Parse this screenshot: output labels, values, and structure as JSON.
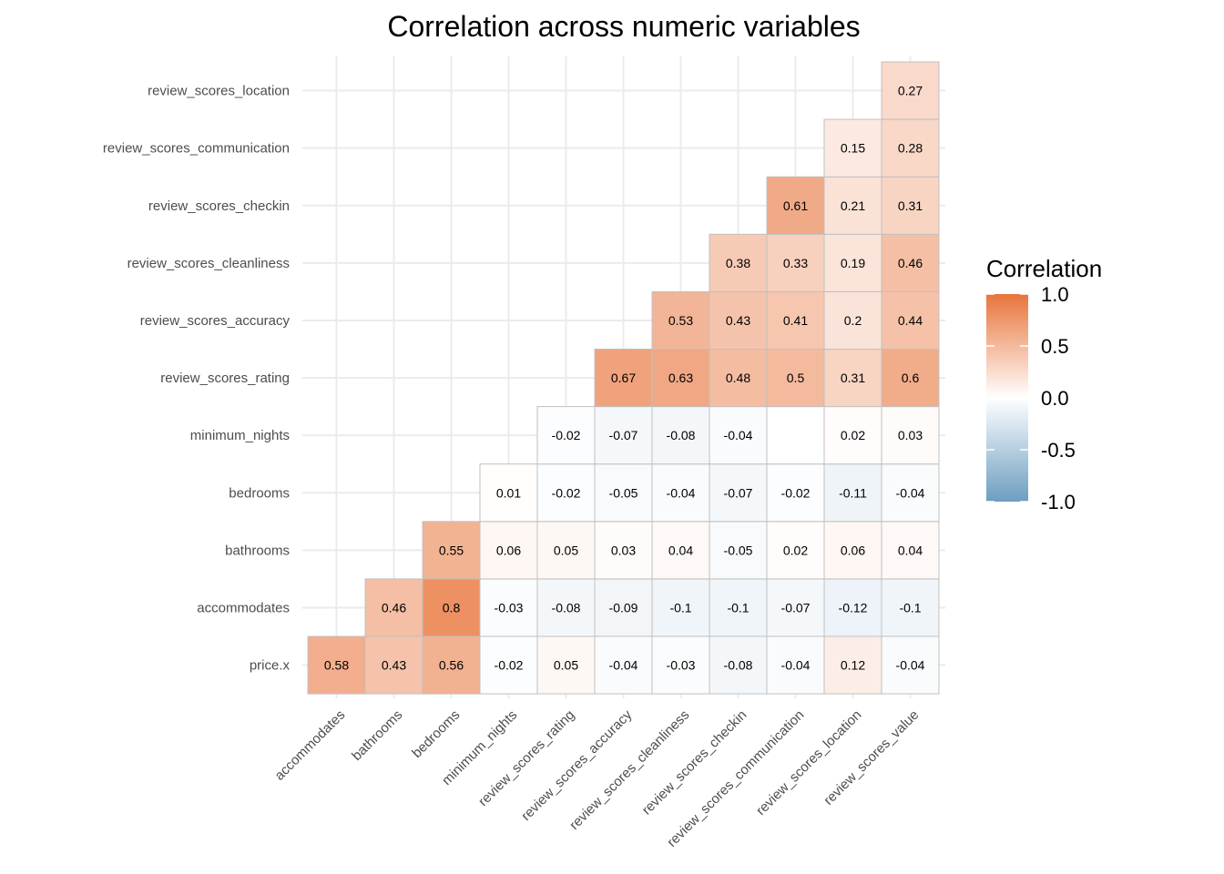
{
  "chart_data": {
    "type": "heatmap",
    "title": "Correlation across numeric variables",
    "xlabel": "",
    "ylabel": "",
    "x_categories": [
      "accommodates",
      "bathrooms",
      "bedrooms",
      "minimum_nights",
      "review_scores_rating",
      "review_scores_accuracy",
      "review_scores_cleanliness",
      "review_scores_checkin",
      "review_scores_communication",
      "review_scores_location",
      "review_scores_value"
    ],
    "y_categories": [
      "price.x",
      "accommodates",
      "bathrooms",
      "bedrooms",
      "minimum_nights",
      "review_scores_rating",
      "review_scores_accuracy",
      "review_scores_cleanliness",
      "review_scores_checkin",
      "review_scores_communication",
      "review_scores_location"
    ],
    "values": [
      [
        0.58,
        0.43,
        0.56,
        -0.02,
        0.05,
        -0.04,
        -0.03,
        -0.08,
        -0.04,
        0.12,
        -0.04
      ],
      [
        null,
        0.46,
        0.8,
        -0.03,
        -0.08,
        -0.09,
        -0.1,
        -0.1,
        -0.07,
        -0.12,
        -0.1
      ],
      [
        null,
        null,
        0.55,
        0.06,
        0.05,
        0.03,
        0.04,
        -0.05,
        0.02,
        0.06,
        0.04
      ],
      [
        null,
        null,
        null,
        0.01,
        -0.02,
        -0.05,
        -0.04,
        -0.07,
        -0.02,
        -0.11,
        -0.04
      ],
      [
        null,
        null,
        null,
        null,
        -0.02,
        -0.07,
        -0.08,
        -0.04,
        0.0,
        0.02,
        0.03
      ],
      [
        null,
        null,
        null,
        null,
        null,
        0.67,
        0.63,
        0.48,
        0.5,
        0.31,
        0.6
      ],
      [
        null,
        null,
        null,
        null,
        null,
        null,
        0.53,
        0.43,
        0.41,
        0.2,
        0.44
      ],
      [
        null,
        null,
        null,
        null,
        null,
        null,
        null,
        0.38,
        0.33,
        0.19,
        0.46
      ],
      [
        null,
        null,
        null,
        null,
        null,
        null,
        null,
        null,
        0.61,
        0.21,
        0.31
      ],
      [
        null,
        null,
        null,
        null,
        null,
        null,
        null,
        null,
        null,
        0.15,
        0.28
      ],
      [
        null,
        null,
        null,
        null,
        null,
        null,
        null,
        null,
        null,
        null,
        0.27
      ]
    ],
    "cell_labels": [
      [
        "0.58",
        "0.43",
        "0.56",
        "-0.02",
        "0.05",
        "-0.04",
        "-0.03",
        "-0.08",
        "-0.04",
        "0.12",
        "-0.04"
      ],
      [
        null,
        "0.46",
        "0.8",
        "-0.03",
        "-0.08",
        "-0.09",
        "-0.1",
        "-0.1",
        "-0.07",
        "-0.12",
        "-0.1"
      ],
      [
        null,
        null,
        "0.55",
        "0.06",
        "0.05",
        "0.03",
        "0.04",
        "-0.05",
        "0.02",
        "0.06",
        "0.04"
      ],
      [
        null,
        null,
        null,
        "0.01",
        "-0.02",
        "-0.05",
        "-0.04",
        "-0.07",
        "-0.02",
        "-0.11",
        "-0.04"
      ],
      [
        null,
        null,
        null,
        null,
        "-0.02",
        "-0.07",
        "-0.08",
        "-0.04",
        "",
        "0.02",
        "0.03"
      ],
      [
        null,
        null,
        null,
        null,
        null,
        "0.67",
        "0.63",
        "0.48",
        "0.5",
        "0.31",
        "0.6"
      ],
      [
        null,
        null,
        null,
        null,
        null,
        null,
        "0.53",
        "0.43",
        "0.41",
        "0.2",
        "0.44"
      ],
      [
        null,
        null,
        null,
        null,
        null,
        null,
        null,
        "0.38",
        "0.33",
        "0.19",
        "0.46"
      ],
      [
        null,
        null,
        null,
        null,
        null,
        null,
        null,
        null,
        "0.61",
        "0.21",
        "0.31"
      ],
      [
        null,
        null,
        null,
        null,
        null,
        null,
        null,
        null,
        null,
        "0.15",
        "0.28"
      ],
      [
        null,
        null,
        null,
        null,
        null,
        null,
        null,
        null,
        null,
        null,
        "0.27"
      ]
    ],
    "legend": {
      "title": "Correlation",
      "position": "right",
      "range": [
        -1,
        1
      ],
      "ticks": [
        1.0,
        0.5,
        0.0,
        -0.5,
        -1.0
      ],
      "tick_labels": [
        "1.0",
        "0.5",
        "0.0",
        "-0.5",
        "-1.0"
      ]
    },
    "colors": {
      "high": "#E8743B",
      "mid": "#FFFFFF",
      "low": "#6D9EC1",
      "cell_border": "#C0C0C0",
      "grid": "#EBEBEB"
    },
    "grid": true
  }
}
